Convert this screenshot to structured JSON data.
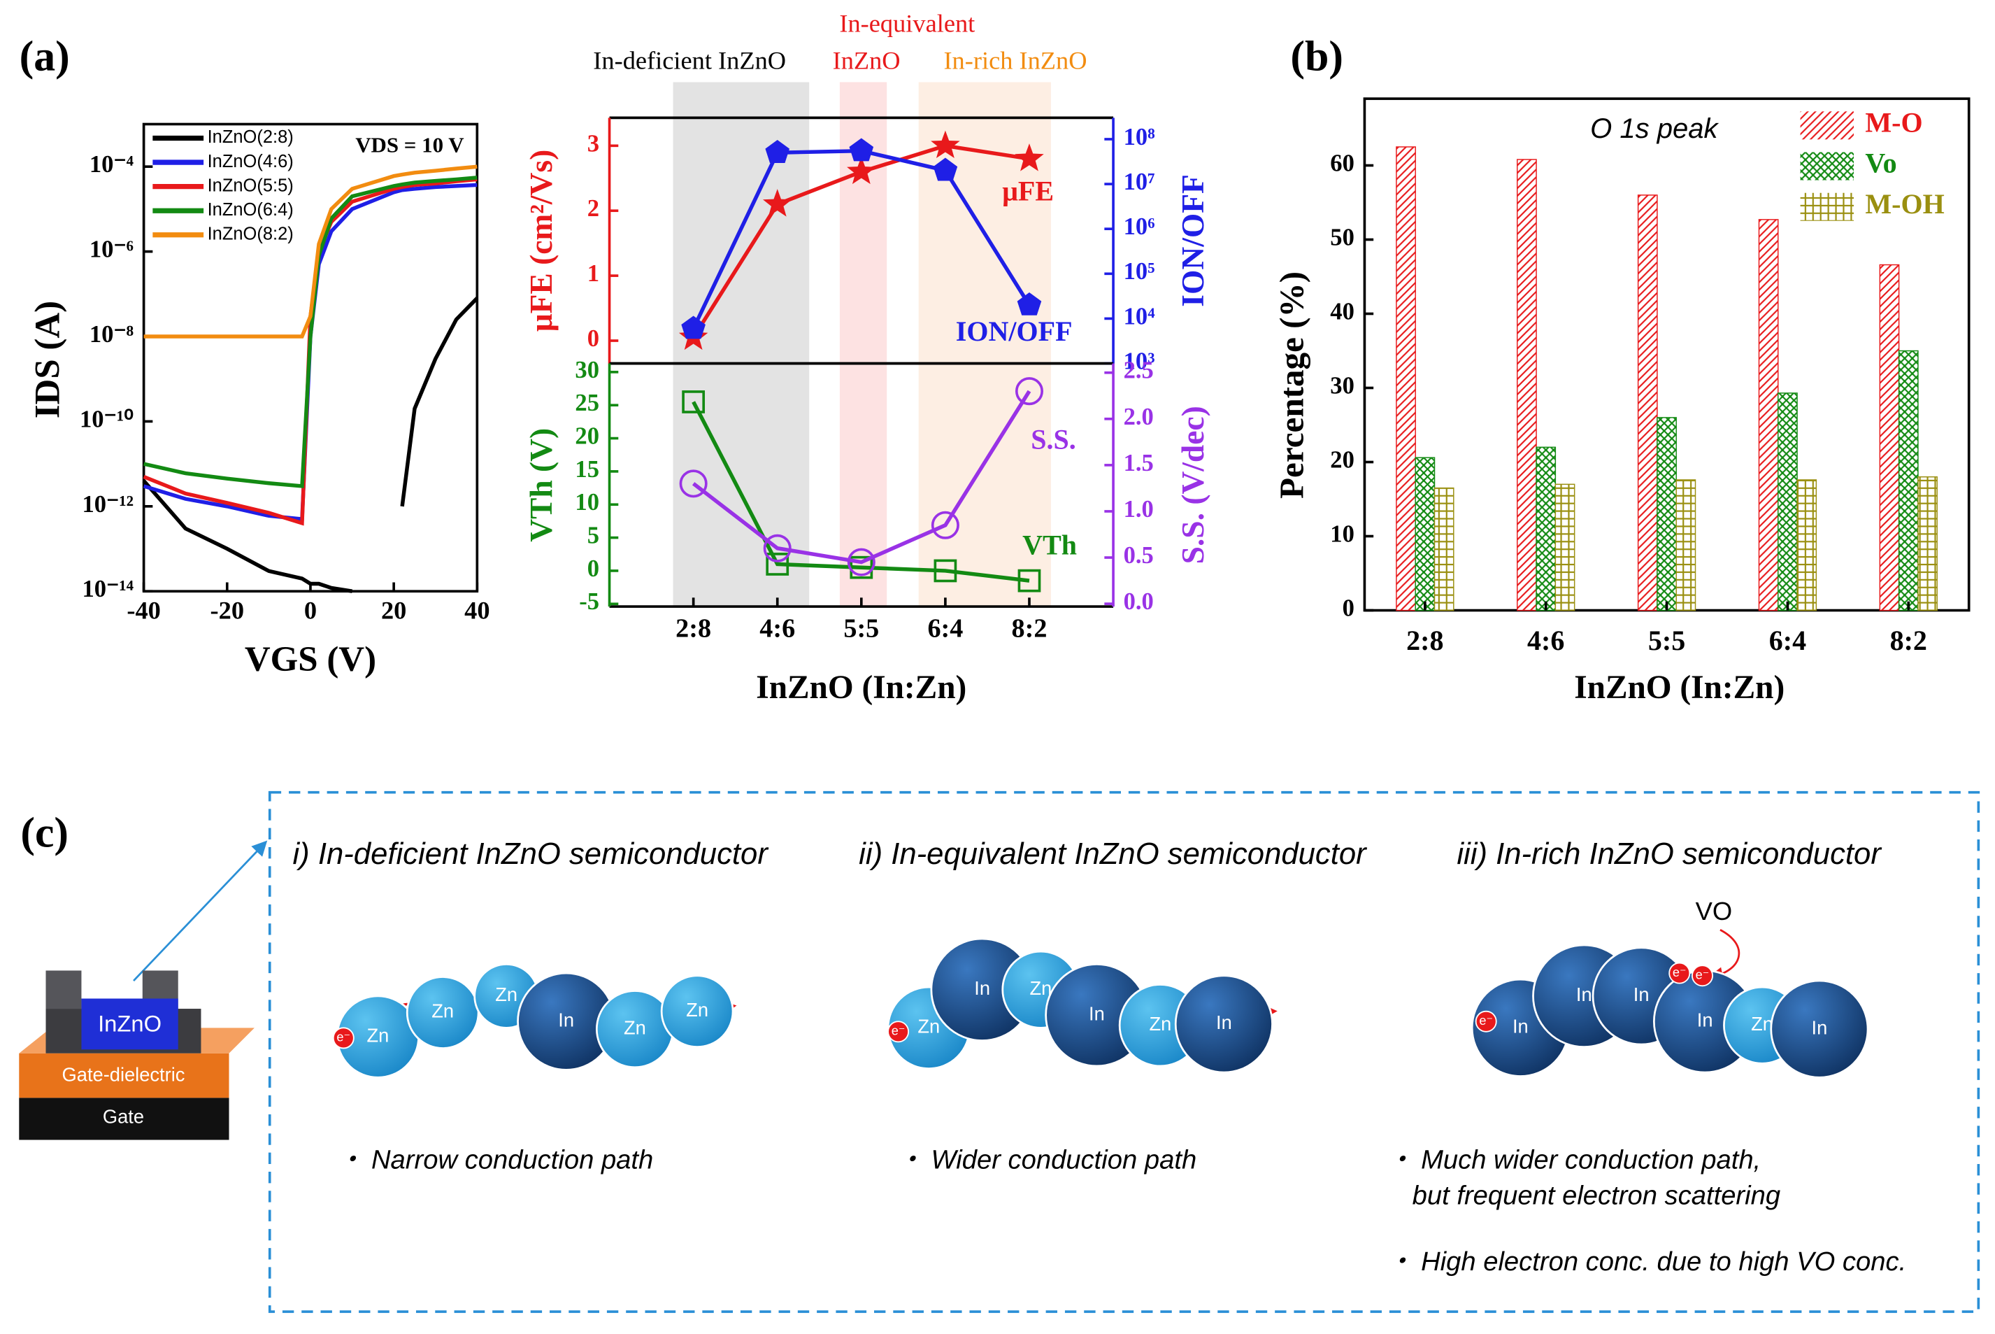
{
  "panel_labels": [
    "(a)",
    "(b)",
    "(c)"
  ],
  "chart_data": [
    {
      "type": "line",
      "x_label": "VGS (V)",
      "y_label": "IDS (A)",
      "annotation": "VDS = 10 V",
      "x": [
        -40,
        -30,
        -20,
        -10,
        -2,
        0,
        2,
        5,
        10,
        20,
        22,
        25,
        30,
        35,
        40
      ],
      "xlim": [
        -40,
        40
      ],
      "xticks": [
        -40,
        -20,
        0,
        20,
        40
      ],
      "ylim": [
        1e-14,
        0.001
      ],
      "y_log": true,
      "yticks": [
        {
          "value": 1e-14,
          "label": "10⁻¹⁴"
        },
        {
          "value": 1e-12,
          "label": "10⁻¹²"
        },
        {
          "value": 1e-10,
          "label": "10⁻¹⁰"
        },
        {
          "value": 1e-08,
          "label": "10⁻⁸"
        },
        {
          "value": 1e-06,
          "label": "10⁻⁶"
        },
        {
          "value": 0.0001,
          "label": "10⁻⁴"
        }
      ],
      "legend": "upper left",
      "series": [
        {
          "name": "InZnO(2:8)",
          "color": "#000000",
          "values": [
            4e-12,
            3e-13,
            1e-13,
            3e-14,
            2e-14,
            1.5e-14,
            1.5e-14,
            1.2e-14,
            1e-14,
            null,
            1e-12,
            2e-10,
            3e-09,
            2.5e-08,
            8e-08
          ]
        },
        {
          "name": "InZnO(4:6)",
          "color": "#1f1fe6",
          "values": [
            3e-12,
            1.5e-12,
            1e-12,
            6e-13,
            5e-13,
            1e-08,
            5e-07,
            3e-06,
            1e-05,
            2.5e-05,
            2.8e-05,
            3e-05,
            3.3e-05,
            3.5e-05,
            3.7e-05
          ]
        },
        {
          "name": "InZnO(5:5)",
          "color": "#e8191b",
          "values": [
            5e-12,
            2e-12,
            1.2e-12,
            7e-13,
            4e-13,
            3e-08,
            1e-06,
            5e-06,
            1.5e-05,
            3e-05,
            3.3e-05,
            3.7e-05,
            4e-05,
            4.5e-05,
            5e-05
          ]
        },
        {
          "name": "InZnO(6:4)",
          "color": "#138a13",
          "values": [
            1e-11,
            6e-12,
            4.5e-12,
            3.5e-12,
            3e-12,
            1e-08,
            8e-07,
            6e-06,
            2e-05,
            3.5e-05,
            3.8e-05,
            4.2e-05,
            4.6e-05,
            5e-05,
            5.5e-05
          ]
        },
        {
          "name": "InZnO(8:2)",
          "color": "#f28c10",
          "values": [
            1e-08,
            1e-08,
            1e-08,
            1e-08,
            1e-08,
            3e-08,
            1.5e-06,
            1e-05,
            3e-05,
            6e-05,
            6.5e-05,
            7.2e-05,
            8e-05,
            9e-05,
            0.0001
          ]
        }
      ]
    },
    {
      "type": "line",
      "categories": [
        "2:8",
        "4:6",
        "5:5",
        "6:4",
        "8:2"
      ],
      "y_label": "μFE (cm²/Vs)",
      "y2_label": "ION/OFF",
      "ylim": [
        -0.35,
        3.43
      ],
      "yticks": [
        0,
        1,
        2,
        3
      ],
      "y2lim": [
        1000,
        300000000
      ],
      "y2_log": true,
      "y2ticks": [
        {
          "value": 1000,
          "label": "10³"
        },
        {
          "value": 10000,
          "label": "10⁴"
        },
        {
          "value": 100000,
          "label": "10⁵"
        },
        {
          "value": 1000000,
          "label": "10⁶"
        },
        {
          "value": 10000000,
          "label": "10⁷"
        },
        {
          "value": 100000000,
          "label": "10⁸"
        }
      ],
      "regions": [
        {
          "label": [
            "In-deficient InZnO"
          ],
          "color": "#e3e3e3",
          "text_color": "#000000"
        },
        {
          "label": [
            "In-equivalent",
            "InZnO"
          ],
          "color": "#fde2e2",
          "text_color": "#e8191b"
        },
        {
          "label": [
            "In-rich InZnO"
          ],
          "color": "#fdeee3",
          "text_color": "#f28c10"
        }
      ],
      "series": [
        {
          "name": "μFE",
          "color": "#e8191b",
          "marker": "star",
          "values": [
            0.05,
            2.1,
            2.6,
            3.0,
            2.8
          ]
        },
        {
          "name": "ION/OFF",
          "color": "#1f1fe6",
          "marker": "pentagon",
          "axis": "y2",
          "values": [
            6000,
            50000000,
            55000000,
            20000000,
            20000
          ]
        }
      ]
    },
    {
      "type": "line",
      "categories": [
        "2:8",
        "4:6",
        "5:5",
        "6:4",
        "8:2"
      ],
      "x_label": "InZnO (In:Zn)",
      "y_label": "VTh (V)",
      "y2_label": "S.S. (V/dec)",
      "ylim": [
        -5.4,
        31.3
      ],
      "yticks": [
        -5,
        0,
        5,
        10,
        15,
        20,
        25,
        30
      ],
      "y2lim": [
        -0.03,
        2.6
      ],
      "y2ticks": [
        {
          "value": 0,
          "label": "0.0"
        },
        {
          "value": 0.5,
          "label": "0.5"
        },
        {
          "value": 1,
          "label": "1.0"
        },
        {
          "value": 1.5,
          "label": "1.5"
        },
        {
          "value": 2,
          "label": "2.0"
        },
        {
          "value": 2.5,
          "label": "2.5"
        }
      ],
      "series": [
        {
          "name": "VTh",
          "color": "#138a13",
          "marker": "square",
          "values": [
            25.5,
            1,
            0.5,
            0,
            -1.5
          ]
        },
        {
          "name": "S.S.",
          "color": "#9932e6",
          "marker": "circle",
          "axis": "y2",
          "values": [
            1.3,
            0.6,
            0.45,
            0.85,
            2.3
          ]
        }
      ]
    },
    {
      "type": "bar",
      "categories": [
        "2:8",
        "4:6",
        "5:5",
        "6:4",
        "8:2"
      ],
      "x_label": "InZnO (In:Zn)",
      "y_label": "Percentage (%)",
      "annotation": "O 1s peak",
      "ylim": [
        0,
        69
      ],
      "yticks": [
        0,
        10,
        20,
        30,
        40,
        50,
        60
      ],
      "legend": "upper right",
      "series": [
        {
          "name": "M-O",
          "color": "#e8191b",
          "hatch": "diagonal",
          "values": [
            62.5,
            60.8,
            56,
            52.7,
            46.6
          ]
        },
        {
          "name": "Vo",
          "color": "#138a13",
          "hatch": "checker",
          "values": [
            20.6,
            22,
            26,
            29.3,
            35
          ]
        },
        {
          "name": "M-OH",
          "color": "#9a8f10",
          "hatch": "grid",
          "values": [
            16.5,
            17,
            17.6,
            17.6,
            18
          ]
        }
      ]
    }
  ],
  "panel_c": {
    "device_layers": [
      "InZnO",
      "Gate-dielectric",
      "Gate"
    ],
    "sections": [
      {
        "title": "i) In-deficient InZnO semiconductor",
        "atoms": [
          "Zn",
          "Zn",
          "Zn",
          "In",
          "Zn",
          "Zn"
        ],
        "electrons": [
          "e⁻"
        ],
        "notes": [
          "・ Narrow conduction path"
        ]
      },
      {
        "title": "ii) In-equivalent InZnO semiconductor",
        "atoms": [
          "Zn",
          "In",
          "Zn",
          "In",
          "Zn",
          "In"
        ],
        "electrons": [
          "e⁻"
        ],
        "notes": [
          "・ Wider conduction path"
        ]
      },
      {
        "title": "iii) In-rich InZnO semiconductor",
        "atoms": [
          "In",
          "In",
          "In",
          "In",
          "Zn",
          "In"
        ],
        "electrons": [
          "e⁻",
          "e⁻",
          "e⁻"
        ],
        "vacancy_label": "VO",
        "notes": [
          "・ Much wider conduction path,",
          "but frequent electron scattering",
          "・ High electron conc. due to high VO conc."
        ]
      }
    ]
  }
}
